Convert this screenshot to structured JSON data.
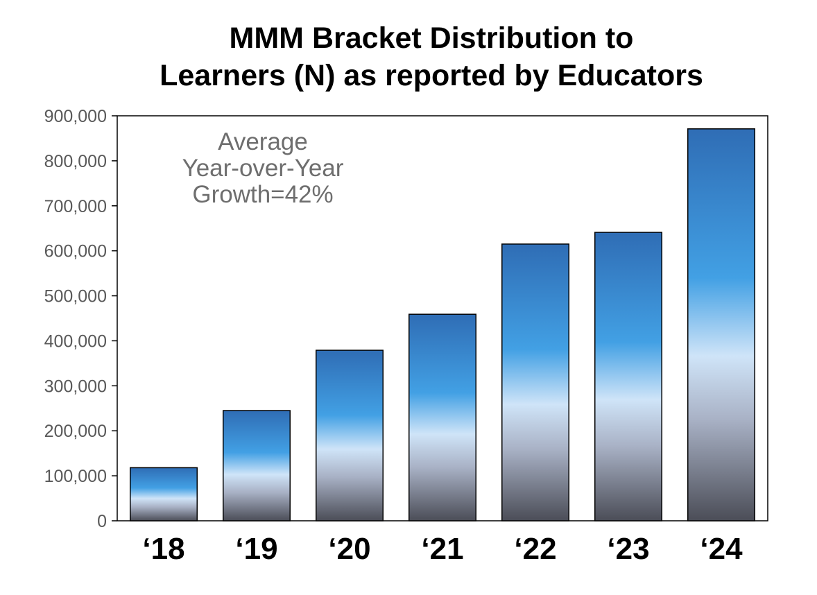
{
  "chart_data": {
    "type": "bar",
    "title_lines": [
      "MMM Bracket Distribution to",
      "Learners (N) as reported by Educators"
    ],
    "categories": [
      "‘18",
      "‘19",
      "‘20",
      "‘21",
      "‘22",
      "‘23",
      "‘24"
    ],
    "values": [
      118000,
      245000,
      379000,
      459000,
      615000,
      641000,
      871000
    ],
    "ylim": [
      0,
      900000
    ],
    "y_ticks": [
      {
        "value": 0,
        "label": "0"
      },
      {
        "value": 100000,
        "label": "100,000"
      },
      {
        "value": 200000,
        "label": "200,000"
      },
      {
        "value": 300000,
        "label": "300,000"
      },
      {
        "value": 400000,
        "label": "400,000"
      },
      {
        "value": 500000,
        "label": "500,000"
      },
      {
        "value": 600000,
        "label": "600,000"
      },
      {
        "value": 700000,
        "label": "700,000"
      },
      {
        "value": 800000,
        "label": "800,000"
      },
      {
        "value": 900000,
        "label": "900,000"
      }
    ],
    "annotation_lines": [
      "Average",
      "Year-over-Year",
      "Growth=42%"
    ],
    "grid": false,
    "legend": "none",
    "colors": {
      "bar_top": "#2f6db5",
      "bar_mid": "#42a0e4",
      "bar_light": "#cfe4f8",
      "bar_bottom": "#4b4d57",
      "axis_text": "#595959",
      "annotation_text": "#6e6e6e"
    }
  }
}
